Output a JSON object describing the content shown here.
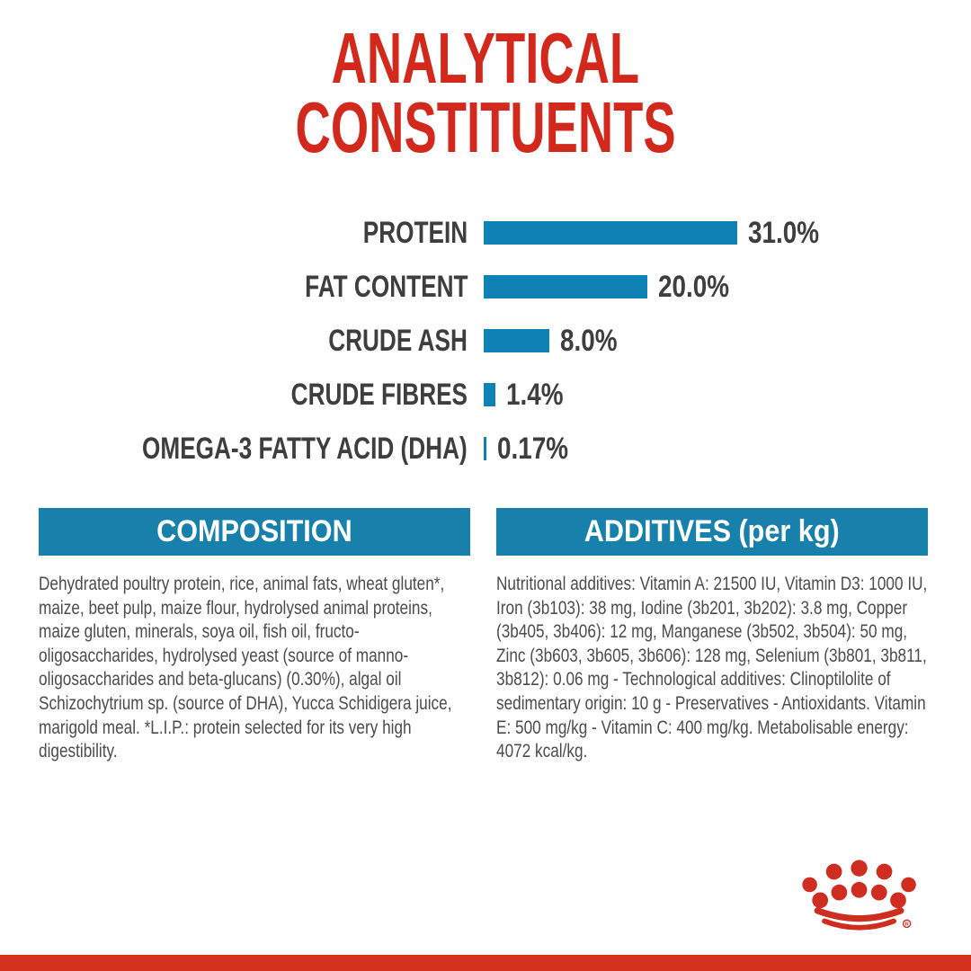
{
  "title": {
    "line1": "ANALYTICAL",
    "line2": "CONSTITUENTS"
  },
  "chart_data": {
    "type": "bar",
    "orientation": "horizontal",
    "title": "ANALYTICAL CONSTITUENTS",
    "categories": [
      "PROTEIN",
      "FAT CONTENT",
      "CRUDE ASH",
      "CRUDE FIBRES",
      "OMEGA-3 FATTY ACID (DHA)"
    ],
    "values": [
      31.0,
      20.0,
      8.0,
      1.4,
      0.17
    ],
    "value_labels": [
      "31.0%",
      "20.0%",
      "8.0%",
      "1.4%",
      "0.17%"
    ],
    "xlim": [
      0,
      31
    ],
    "grid": false,
    "legend": false,
    "bar_color": "#0e82b5"
  },
  "sections": {
    "composition": {
      "header": "COMPOSITION",
      "body": "Dehydrated poultry protein, rice, animal fats, wheat gluten*, maize, beet pulp, maize flour, hydrolysed animal proteins, maize gluten, minerals, soya oil, fish oil, fructo-oligosaccharides, hydrolysed yeast (source of manno-oligosaccharides and beta-glucans) (0.30%), algal oil Schizochytrium sp. (source of DHA), Yucca Schidigera juice, marigold meal. *L.I.P.: protein selected for its very high digestibility."
    },
    "additives": {
      "header": "ADDITIVES (per kg)",
      "body": "Nutritional additives: Vitamin A: 21500 IU, Vitamin D3: 1000 IU, Iron (3b103): 38 mg, Iodine (3b201, 3b202): 3.8 mg, Copper (3b405, 3b406): 12 mg, Manganese (3b502, 3b504): 50 mg, Zinc (3b603, 3b605, 3b606): 128 mg, Selenium (3b801, 3b811, 3b812): 0.06 mg - Technological additives: Clinoptilolite of sedimentary origin: 10 g - Preservatives - Antioxidants. Vitamin E: 500 mg/kg - Vitamin C: 400 mg/kg. Metabolisable energy: 4072 kcal/kg."
    }
  },
  "footer": {
    "logo_name": "royal-canin-crown",
    "registered_mark": "R"
  },
  "colors": {
    "brand_red": "#d2291c",
    "crown_red": "#ce2d20",
    "footer_red": "#d5331f",
    "bar_blue": "#0e82b5",
    "header_blue": "#1780ab",
    "label_gray": "#3e3e3e",
    "body_gray": "#4c4c4c"
  }
}
